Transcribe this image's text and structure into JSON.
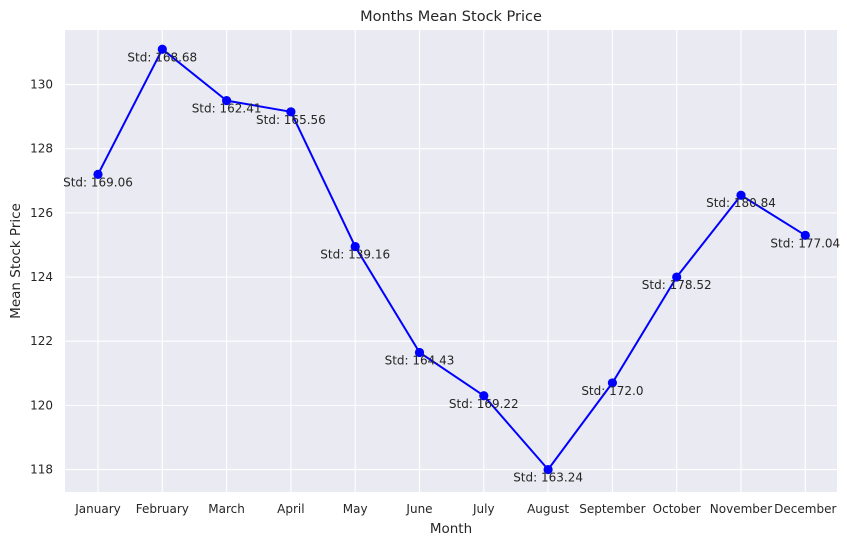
{
  "chart_data": {
    "type": "line",
    "title": "Months Mean Stock Price",
    "xlabel": "Month",
    "ylabel": "Mean Stock Price",
    "categories": [
      "January",
      "February",
      "March",
      "April",
      "May",
      "June",
      "July",
      "August",
      "September",
      "October",
      "November",
      "December"
    ],
    "series": [
      {
        "values": [
          127.2,
          131.1,
          129.5,
          129.15,
          124.95,
          121.65,
          120.3,
          118.0,
          120.7,
          124.0,
          126.55,
          125.3
        ],
        "color": "#0000ff",
        "marker": "circle"
      }
    ],
    "point_labels": [
      "Std: 169.06",
      "Std: 168.68",
      "Std: 162.41",
      "Std: 165.56",
      "Std: 139.16",
      "Std: 164.43",
      "Std: 169.22",
      "Std: 163.24",
      "Std: 172.0",
      "Std: 178.52",
      "Std: 180.84",
      "Std: 177.04"
    ],
    "yticks": [
      118,
      120,
      122,
      124,
      126,
      128,
      130
    ],
    "ylim": [
      117.3,
      131.7
    ],
    "grid": true,
    "background": "#eaeaf2"
  }
}
